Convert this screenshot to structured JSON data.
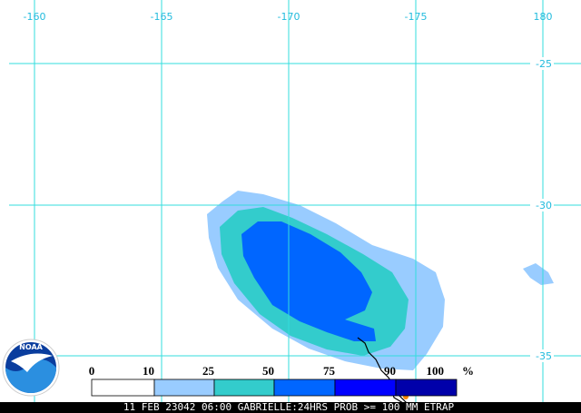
{
  "map": {
    "longitude_labels": [
      -160,
      -165,
      -170,
      -175,
      180
    ],
    "latitude_labels": [
      -25,
      -30,
      -35
    ],
    "logo": "NOAA",
    "legend": {
      "thresholds": [
        0,
        10,
        25,
        50,
        75,
        90,
        100
      ],
      "unit": "%",
      "colors": [
        "#ffffff",
        "#99ccff",
        "#33cccc",
        "#0066ff",
        "#0000ff",
        "#0000aa"
      ]
    },
    "footer": "11 FEB 23042 06:00 GABRIELLE:24HRS PROB >= 100 MM ETRAP"
  }
}
